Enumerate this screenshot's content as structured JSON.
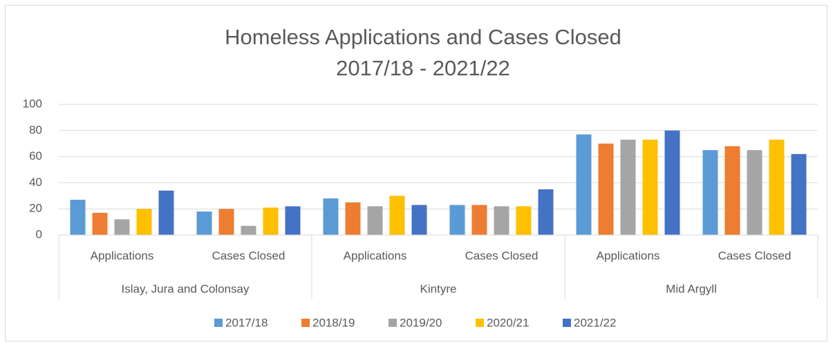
{
  "chart_data": {
    "type": "bar",
    "title": [
      "Homeless Applications and Cases Closed",
      "2017/18 - 2021/22"
    ],
    "categories": [
      "Applications",
      "Cases Closed",
      "Applications",
      "Cases Closed",
      "Applications",
      "Cases Closed"
    ],
    "category_groups": [
      "Islay, Jura and Colonsay",
      "Kintyre",
      "Mid Argyll"
    ],
    "series": [
      {
        "name": "2017/18",
        "color": "#5b9bd5",
        "values": [
          27,
          18,
          28,
          23,
          77,
          65
        ]
      },
      {
        "name": "2018/19",
        "color": "#ed7d31",
        "values": [
          17,
          20,
          25,
          23,
          70,
          68
        ]
      },
      {
        "name": "2019/20",
        "color": "#a5a5a5",
        "values": [
          12,
          7,
          22,
          22,
          73,
          65
        ]
      },
      {
        "name": "2020/21",
        "color": "#ffc000",
        "values": [
          20,
          21,
          30,
          22,
          73,
          73
        ]
      },
      {
        "name": "2021/22",
        "color": "#4472c4",
        "values": [
          34,
          22,
          23,
          35,
          80,
          62
        ]
      }
    ],
    "ylim": [
      0,
      100
    ],
    "yticks": [
      0,
      20,
      40,
      60,
      80,
      100
    ],
    "grid": true,
    "legend": "bottom"
  }
}
